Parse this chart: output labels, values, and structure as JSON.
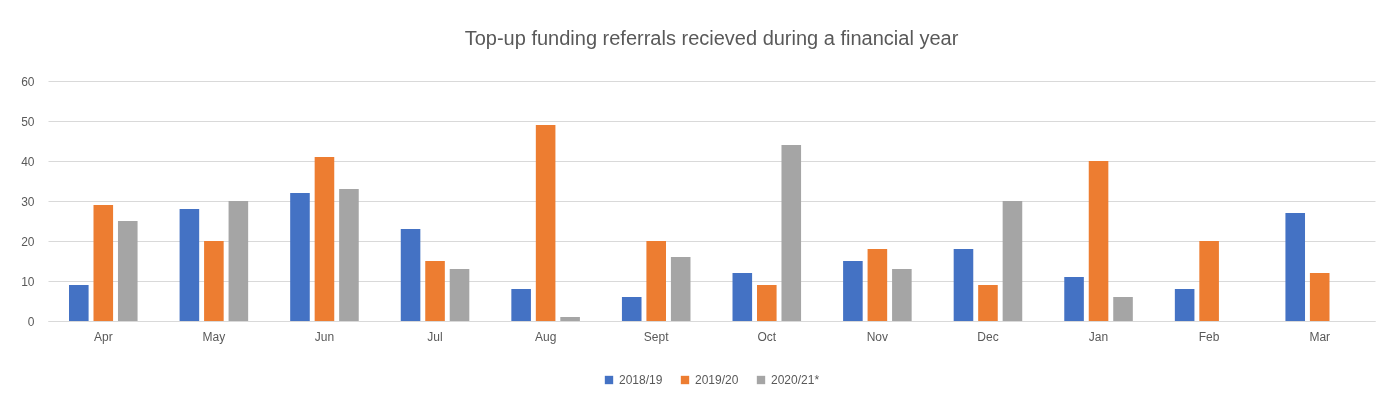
{
  "chart_data": {
    "type": "bar",
    "title": "Top-up funding referrals recieved during a financial year",
    "categories": [
      "Apr",
      "May",
      "Jun",
      "Jul",
      "Aug",
      "Sept",
      "Oct",
      "Nov",
      "Dec",
      "Jan",
      "Feb",
      "Mar"
    ],
    "series": [
      {
        "name": "2018/19",
        "color": "#4472c4",
        "values": [
          9,
          28,
          32,
          23,
          8,
          6,
          12,
          15,
          18,
          11,
          8,
          27
        ]
      },
      {
        "name": "2019/20",
        "color": "#ed7d31",
        "values": [
          29,
          20,
          41,
          15,
          49,
          20,
          9,
          18,
          9,
          40,
          20,
          12
        ]
      },
      {
        "name": "2020/21*",
        "color": "#a5a5a5",
        "values": [
          25,
          30,
          33,
          13,
          1,
          16,
          44,
          13,
          30,
          6,
          null,
          null
        ]
      }
    ],
    "ylim": [
      0,
      60
    ],
    "yticks": [
      0,
      10,
      20,
      30,
      40,
      50,
      60
    ],
    "grid": true,
    "legend": "bottom"
  }
}
